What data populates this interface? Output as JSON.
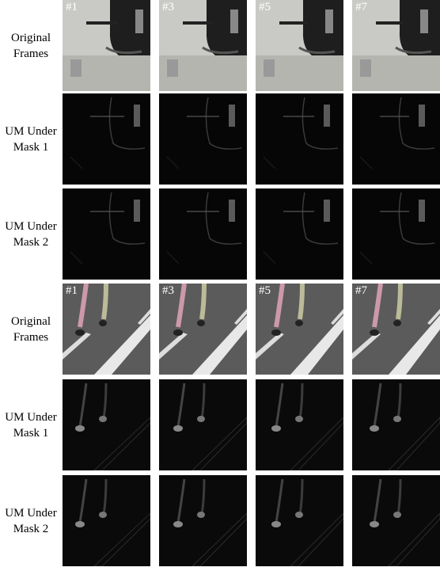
{
  "rows": [
    {
      "label": [
        "Original",
        "Frames"
      ],
      "frame_labels": [
        "#1",
        "#3",
        "#5",
        "#7"
      ]
    },
    {
      "label": [
        "UM Under",
        "Mask 1"
      ]
    },
    {
      "label": [
        "UM Under",
        "Mask 2"
      ]
    },
    {
      "label": [
        "Original",
        "Frames"
      ],
      "frame_labels": [
        "#1",
        "#3",
        "#5",
        "#7"
      ]
    },
    {
      "label": [
        "UM Under",
        "Mask 1"
      ]
    },
    {
      "label": [
        "UM Under",
        "Mask 2"
      ]
    }
  ]
}
